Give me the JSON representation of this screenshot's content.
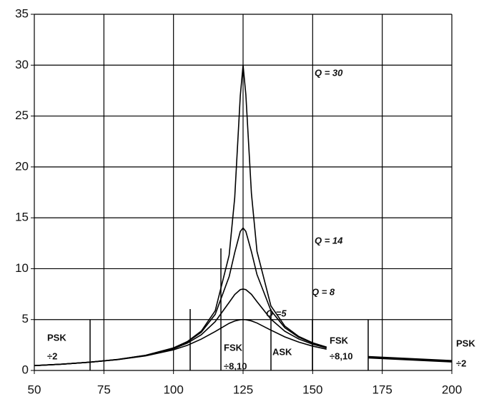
{
  "chart_data": {
    "type": "line",
    "x": [
      50,
      60,
      70,
      80,
      90,
      100,
      105,
      110,
      115,
      120,
      122,
      124,
      125,
      126,
      128,
      130,
      135,
      140,
      145,
      150,
      155
    ],
    "series": [
      {
        "name": "Q = 30",
        "color": "#000000",
        "values": [
          0.48,
          0.62,
          0.82,
          1.08,
          1.49,
          2.22,
          2.84,
          3.87,
          5.87,
          11.33,
          16.98,
          27.0,
          30,
          27.1,
          17.4,
          11.7,
          6.34,
          4.36,
          3.34,
          2.72,
          2.3
        ]
      },
      {
        "name": "Q = 14",
        "color": "#000000",
        "values": [
          0.48,
          0.62,
          0.81,
          1.08,
          1.49,
          2.2,
          2.8,
          3.76,
          5.52,
          9.22,
          11.58,
          13.66,
          14,
          13.66,
          11.67,
          9.42,
          5.89,
          4.2,
          3.26,
          2.68,
          2.28
        ]
      },
      {
        "name": "Q = 8",
        "color": "#000000",
        "values": [
          0.48,
          0.62,
          0.81,
          1.07,
          1.47,
          2.14,
          2.69,
          3.51,
          4.8,
          6.69,
          7.46,
          7.94,
          8,
          7.94,
          7.48,
          6.76,
          5.04,
          3.85,
          3.09,
          2.58,
          2.22
        ]
      },
      {
        "name": "Q =5",
        "color": "#000000",
        "values": [
          0.47,
          0.62,
          0.81,
          1.06,
          1.43,
          2.03,
          2.47,
          3.08,
          3.83,
          4.63,
          4.86,
          4.98,
          5,
          4.98,
          4.87,
          4.66,
          3.96,
          3.3,
          2.79,
          2.39,
          2.09
        ]
      },
      {
        "color": "#000000",
        "x": [
          170,
          200
        ],
        "values": [
          1.3,
          0.9
        ]
      }
    ],
    "annotations": [
      "PSK",
      "÷2",
      "FSK",
      "÷8,10",
      "ASK",
      "FSK",
      "÷8,10",
      "PSK",
      "÷2"
    ],
    "xlim": [
      50,
      200
    ],
    "xticks": [
      50,
      75,
      100,
      125,
      150,
      175,
      200
    ],
    "ylim": [
      0,
      35
    ],
    "yticks": [
      0,
      5,
      10,
      15,
      20,
      25,
      30,
      35
    ],
    "grid": true
  }
}
